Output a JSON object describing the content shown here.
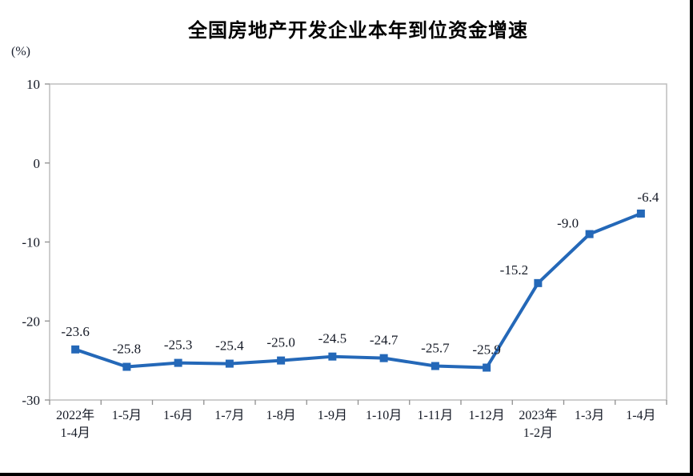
{
  "page": {
    "background": "#ffffff",
    "frame_border_color": "#000000"
  },
  "chart_data": {
    "type": "line",
    "title": "全国房地产开发企业本年到位资金增速",
    "ylabel": "(%)",
    "xlabel": "",
    "categories": [
      "2022年\n1-4月",
      "1-5月",
      "1-6月",
      "1-7月",
      "1-8月",
      "1-9月",
      "1-10月",
      "1-11月",
      "1-12月",
      "2023年\n1-2月",
      "1-3月",
      "1-4月"
    ],
    "values": [
      -23.6,
      -25.8,
      -25.3,
      -25.4,
      -25.0,
      -24.5,
      -24.7,
      -25.7,
      -25.9,
      -15.2,
      -9.0,
      -6.4
    ],
    "data_labels": [
      "-23.6",
      "-25.8",
      "-25.3",
      "-25.4",
      "-25.0",
      "-24.5",
      "-24.7",
      "-25.7",
      "-25.9",
      "-15.2",
      "-9.0",
      "-6.4"
    ],
    "ylim": [
      -30,
      10
    ],
    "yticks": [
      10,
      0,
      -10,
      -20,
      -30
    ],
    "grid": false,
    "legend": "none",
    "line_color": "#2468b8",
    "marker": "square",
    "marker_color": "#2468b8",
    "axis_color": "#bdbdbd",
    "tick_color": "#8f8f8f",
    "label_color": "#141925"
  }
}
